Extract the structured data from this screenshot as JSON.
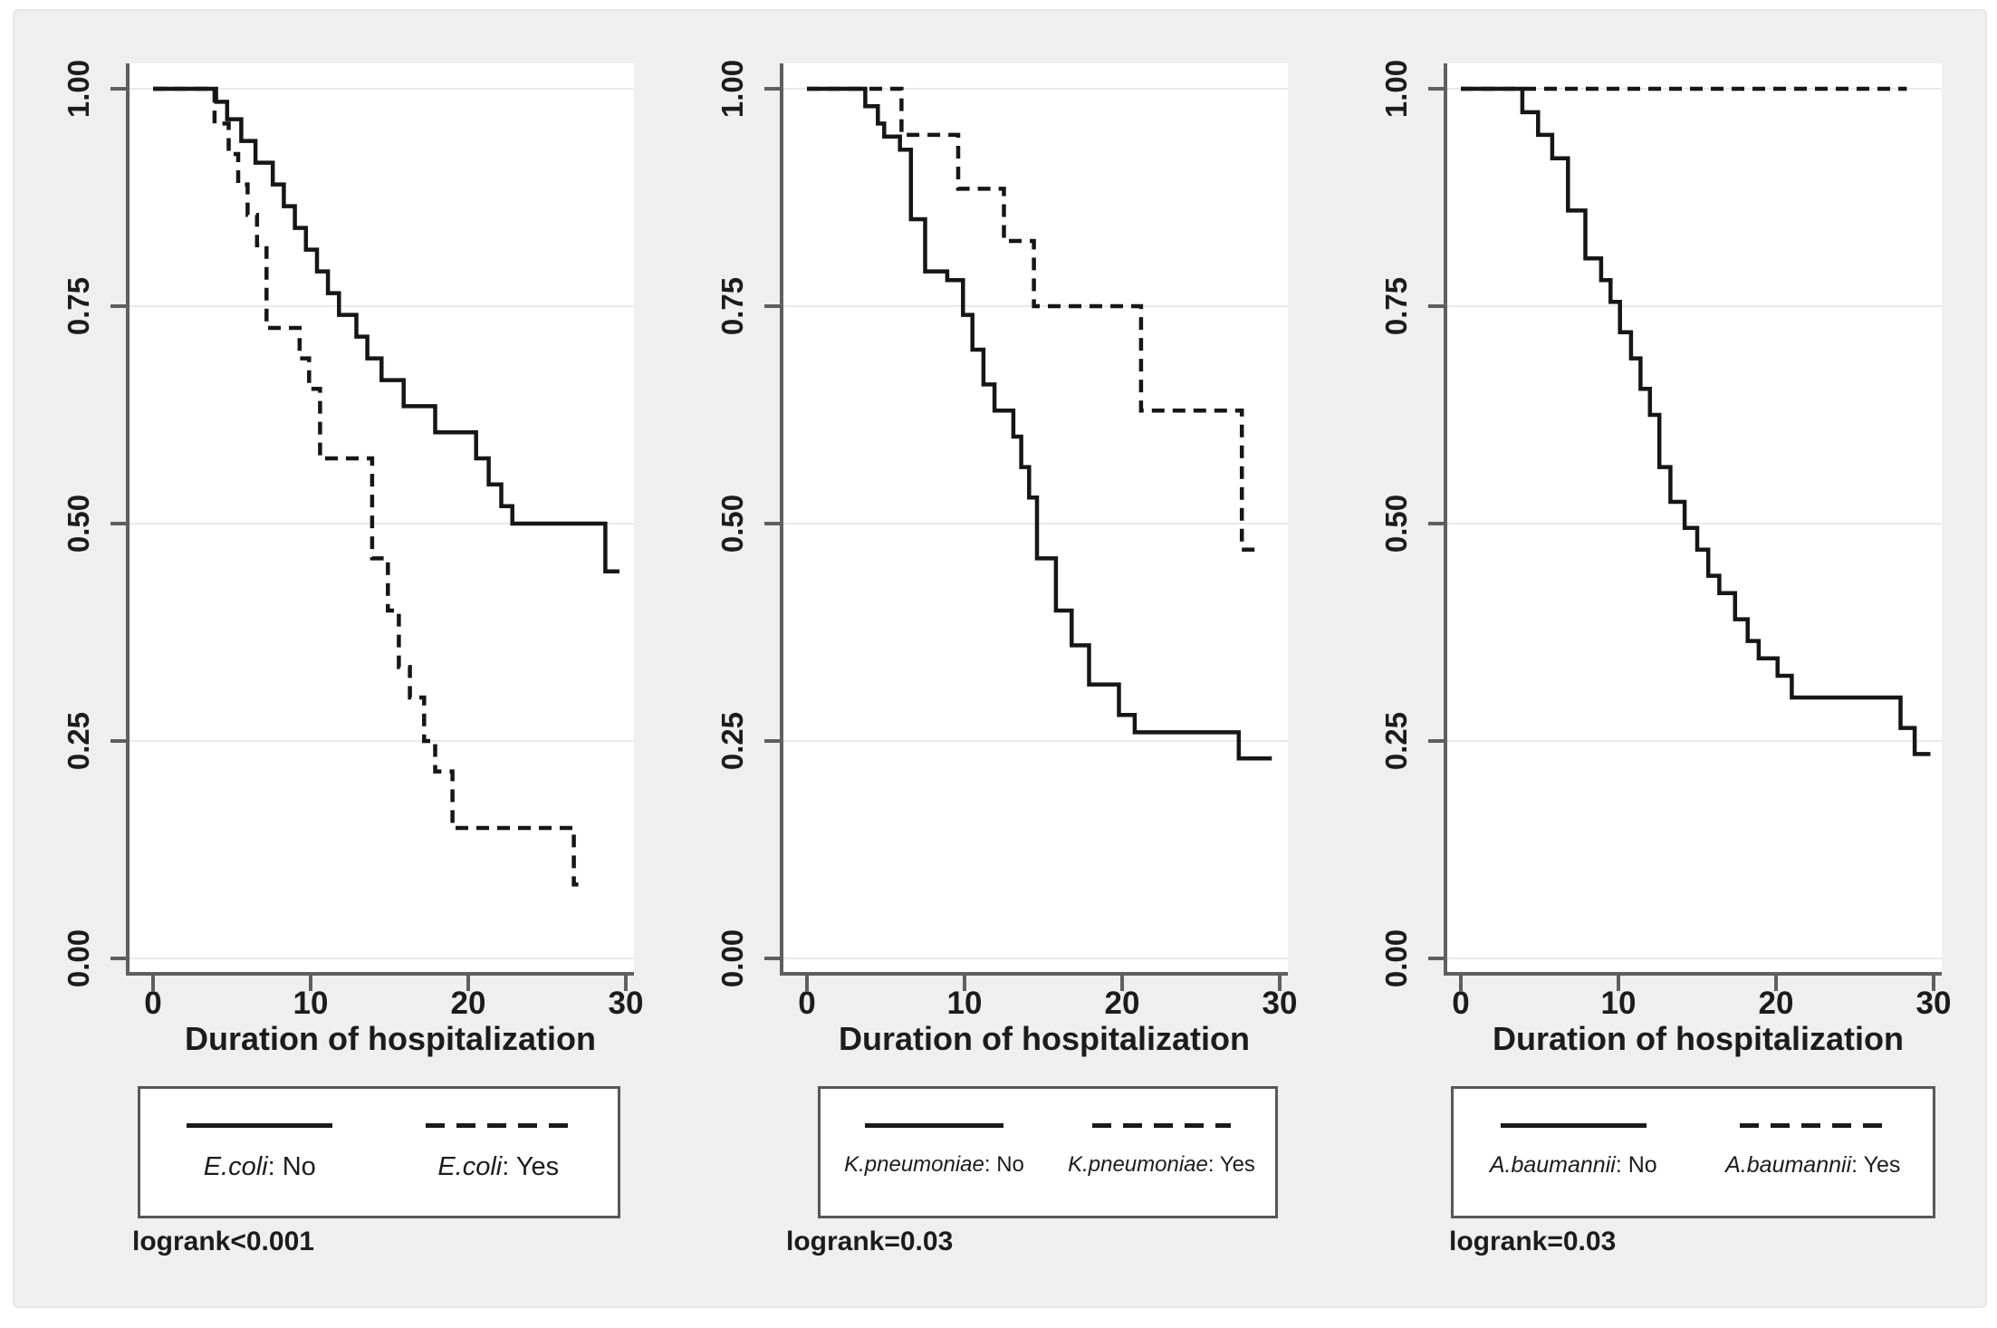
{
  "colors": {
    "figure_bg": "#f0eff0",
    "plot_bg": "#ffffff",
    "gridline": "#e9e9e9",
    "axis": "#5f5f5f",
    "curve": "#161616",
    "text": "#1c1c1c",
    "legend_border": "#575757"
  },
  "chart_data": [
    {
      "type": "line",
      "subtype": "kaplan-meier-step",
      "xlabel": "Duration of hospitalization",
      "ylabel": "",
      "xlim": [
        0,
        30
      ],
      "ylim": [
        0.0,
        1.0
      ],
      "grid": "horizontal",
      "legend_position": "below",
      "x_ticks": [
        {
          "v": 0,
          "label": "0"
        },
        {
          "v": 10,
          "label": "10"
        },
        {
          "v": 20,
          "label": "20"
        },
        {
          "v": 30,
          "label": "30"
        }
      ],
      "y_ticks": [
        {
          "v": 0.0,
          "label": "0.00"
        },
        {
          "v": 0.25,
          "label": "0.25"
        },
        {
          "v": 0.5,
          "label": "0.50"
        },
        {
          "v": 0.75,
          "label": "0.75"
        },
        {
          "v": 1.0,
          "label": "1.00"
        }
      ],
      "annotation": "logrank<0.001",
      "legend": [
        {
          "species": "E.coli",
          "suffix": ": No",
          "style": "solid"
        },
        {
          "species": "E.coli",
          "suffix": ": Yes",
          "style": "dashed"
        }
      ],
      "series": [
        {
          "name": "E.coli: No",
          "style": "solid",
          "points": [
            [
              0,
              1
            ],
            [
              4,
              1
            ],
            [
              4,
              0.985
            ],
            [
              4.7,
              0.985
            ],
            [
              4.7,
              0.965
            ],
            [
              5.6,
              0.965
            ],
            [
              5.6,
              0.94
            ],
            [
              6.5,
              0.94
            ],
            [
              6.5,
              0.915
            ],
            [
              7.6,
              0.915
            ],
            [
              7.6,
              0.89
            ],
            [
              8.3,
              0.89
            ],
            [
              8.3,
              0.865
            ],
            [
              9,
              0.865
            ],
            [
              9,
              0.84
            ],
            [
              9.7,
              0.84
            ],
            [
              9.7,
              0.815
            ],
            [
              10.4,
              0.815
            ],
            [
              10.4,
              0.79
            ],
            [
              11.1,
              0.79
            ],
            [
              11.1,
              0.765
            ],
            [
              11.8,
              0.765
            ],
            [
              11.8,
              0.74
            ],
            [
              12.9,
              0.74
            ],
            [
              12.9,
              0.715
            ],
            [
              13.6,
              0.715
            ],
            [
              13.6,
              0.69
            ],
            [
              14.5,
              0.69
            ],
            [
              14.5,
              0.665
            ],
            [
              15.9,
              0.665
            ],
            [
              15.9,
              0.635
            ],
            [
              17.9,
              0.635
            ],
            [
              17.9,
              0.605
            ],
            [
              20.5,
              0.605
            ],
            [
              20.5,
              0.575
            ],
            [
              21.3,
              0.575
            ],
            [
              21.3,
              0.545
            ],
            [
              22.1,
              0.545
            ],
            [
              22.1,
              0.52
            ],
            [
              22.8,
              0.52
            ],
            [
              22.8,
              0.5
            ],
            [
              28.7,
              0.5
            ],
            [
              28.7,
              0.445
            ],
            [
              29.6,
              0.445
            ]
          ]
        },
        {
          "name": "E.coli: Yes",
          "style": "dashed",
          "points": [
            [
              0,
              1
            ],
            [
              3.9,
              1
            ],
            [
              3.9,
              0.96
            ],
            [
              4.8,
              0.96
            ],
            [
              4.8,
              0.925
            ],
            [
              5.4,
              0.925
            ],
            [
              5.4,
              0.89
            ],
            [
              6,
              0.89
            ],
            [
              6,
              0.855
            ],
            [
              6.6,
              0.855
            ],
            [
              6.6,
              0.82
            ],
            [
              7.2,
              0.82
            ],
            [
              7.2,
              0.725
            ],
            [
              9.3,
              0.725
            ],
            [
              9.3,
              0.69
            ],
            [
              9.9,
              0.69
            ],
            [
              9.9,
              0.655
            ],
            [
              10.6,
              0.655
            ],
            [
              10.6,
              0.575
            ],
            [
              13.9,
              0.575
            ],
            [
              13.9,
              0.46
            ],
            [
              14.9,
              0.46
            ],
            [
              14.9,
              0.4
            ],
            [
              15.6,
              0.4
            ],
            [
              15.6,
              0.335
            ],
            [
              16.3,
              0.335
            ],
            [
              16.3,
              0.3
            ],
            [
              17.2,
              0.3
            ],
            [
              17.2,
              0.25
            ],
            [
              17.9,
              0.25
            ],
            [
              17.9,
              0.215
            ],
            [
              19,
              0.215
            ],
            [
              19,
              0.15
            ],
            [
              26.7,
              0.15
            ],
            [
              26.7,
              0.085
            ],
            [
              27.5,
              0.085
            ]
          ]
        }
      ]
    },
    {
      "type": "line",
      "subtype": "kaplan-meier-step",
      "xlabel": "Duration of hospitalization",
      "ylabel": "",
      "xlim": [
        0,
        30
      ],
      "ylim": [
        0.0,
        1.0
      ],
      "grid": "horizontal",
      "legend_position": "below",
      "x_ticks": [
        {
          "v": 0,
          "label": "0"
        },
        {
          "v": 10,
          "label": "10"
        },
        {
          "v": 20,
          "label": "20"
        },
        {
          "v": 30,
          "label": "30"
        }
      ],
      "y_ticks": [
        {
          "v": 0.0,
          "label": "0.00"
        },
        {
          "v": 0.25,
          "label": "0.25"
        },
        {
          "v": 0.5,
          "label": "0.50"
        },
        {
          "v": 0.75,
          "label": "0.75"
        },
        {
          "v": 1.0,
          "label": "1.00"
        }
      ],
      "annotation": "logrank=0.03",
      "legend": [
        {
          "species": "K.pneumoniae",
          "suffix": ": No",
          "style": "solid"
        },
        {
          "species": "K.pneumoniae",
          "suffix": ": Yes",
          "style": "dashed"
        }
      ],
      "series": [
        {
          "name": "K.pneumoniae: No",
          "style": "solid",
          "points": [
            [
              0,
              1
            ],
            [
              3.7,
              1
            ],
            [
              3.7,
              0.98
            ],
            [
              4.5,
              0.98
            ],
            [
              4.5,
              0.96
            ],
            [
              4.9,
              0.96
            ],
            [
              4.9,
              0.945
            ],
            [
              5.9,
              0.945
            ],
            [
              5.9,
              0.93
            ],
            [
              6.6,
              0.93
            ],
            [
              6.6,
              0.85
            ],
            [
              7.5,
              0.85
            ],
            [
              7.5,
              0.79
            ],
            [
              8.9,
              0.79
            ],
            [
              8.9,
              0.78
            ],
            [
              9.9,
              0.78
            ],
            [
              9.9,
              0.74
            ],
            [
              10.5,
              0.74
            ],
            [
              10.5,
              0.7
            ],
            [
              11.2,
              0.7
            ],
            [
              11.2,
              0.66
            ],
            [
              11.9,
              0.66
            ],
            [
              11.9,
              0.63
            ],
            [
              13.1,
              0.63
            ],
            [
              13.1,
              0.6
            ],
            [
              13.6,
              0.6
            ],
            [
              13.6,
              0.565
            ],
            [
              14.1,
              0.565
            ],
            [
              14.1,
              0.53
            ],
            [
              14.6,
              0.53
            ],
            [
              14.6,
              0.46
            ],
            [
              15.8,
              0.46
            ],
            [
              15.8,
              0.4
            ],
            [
              16.8,
              0.4
            ],
            [
              16.8,
              0.36
            ],
            [
              17.9,
              0.36
            ],
            [
              17.9,
              0.315
            ],
            [
              19.8,
              0.315
            ],
            [
              19.8,
              0.28
            ],
            [
              20.8,
              0.28
            ],
            [
              20.8,
              0.26
            ],
            [
              27.4,
              0.26
            ],
            [
              27.4,
              0.23
            ],
            [
              29.5,
              0.23
            ]
          ]
        },
        {
          "name": "K.pneumoniae: Yes",
          "style": "dashed",
          "points": [
            [
              0,
              1
            ],
            [
              6,
              1
            ],
            [
              6,
              0.947
            ],
            [
              9.6,
              0.947
            ],
            [
              9.6,
              0.885
            ],
            [
              12.5,
              0.885
            ],
            [
              12.5,
              0.825
            ],
            [
              14.4,
              0.825
            ],
            [
              14.4,
              0.75
            ],
            [
              21.2,
              0.75
            ],
            [
              21.2,
              0.63
            ],
            [
              27.6,
              0.63
            ],
            [
              27.6,
              0.47
            ],
            [
              28.5,
              0.47
            ]
          ]
        }
      ]
    },
    {
      "type": "line",
      "subtype": "kaplan-meier-step",
      "xlabel": "Duration of hospitalization",
      "ylabel": "",
      "xlim": [
        0,
        30
      ],
      "ylim": [
        0.0,
        1.0
      ],
      "grid": "horizontal",
      "legend_position": "below",
      "x_ticks": [
        {
          "v": 0,
          "label": "0"
        },
        {
          "v": 10,
          "label": "10"
        },
        {
          "v": 20,
          "label": "20"
        },
        {
          "v": 30,
          "label": "30"
        }
      ],
      "y_ticks": [
        {
          "v": 0.0,
          "label": "0.00"
        },
        {
          "v": 0.25,
          "label": "0.25"
        },
        {
          "v": 0.5,
          "label": "0.50"
        },
        {
          "v": 0.75,
          "label": "0.75"
        },
        {
          "v": 1.0,
          "label": "1.00"
        }
      ],
      "annotation": "logrank=0.03",
      "legend": [
        {
          "species": "A.baumannii",
          "suffix": ": No",
          "style": "solid"
        },
        {
          "species": "A.baumannii",
          "suffix": ": Yes",
          "style": "dashed"
        }
      ],
      "series": [
        {
          "name": "A.baumannii: No",
          "style": "solid",
          "points": [
            [
              0,
              1
            ],
            [
              3.9,
              1
            ],
            [
              3.9,
              0.973
            ],
            [
              4.9,
              0.973
            ],
            [
              4.9,
              0.947
            ],
            [
              5.8,
              0.947
            ],
            [
              5.8,
              0.92
            ],
            [
              6.8,
              0.92
            ],
            [
              6.8,
              0.86
            ],
            [
              7.9,
              0.86
            ],
            [
              7.9,
              0.805
            ],
            [
              8.9,
              0.805
            ],
            [
              8.9,
              0.78
            ],
            [
              9.5,
              0.78
            ],
            [
              9.5,
              0.755
            ],
            [
              10.1,
              0.755
            ],
            [
              10.1,
              0.72
            ],
            [
              10.8,
              0.72
            ],
            [
              10.8,
              0.69
            ],
            [
              11.4,
              0.69
            ],
            [
              11.4,
              0.655
            ],
            [
              12,
              0.655
            ],
            [
              12,
              0.625
            ],
            [
              12.6,
              0.625
            ],
            [
              12.6,
              0.565
            ],
            [
              13.3,
              0.565
            ],
            [
              13.3,
              0.525
            ],
            [
              14.2,
              0.525
            ],
            [
              14.2,
              0.495
            ],
            [
              15,
              0.495
            ],
            [
              15,
              0.47
            ],
            [
              15.7,
              0.47
            ],
            [
              15.7,
              0.44
            ],
            [
              16.4,
              0.44
            ],
            [
              16.4,
              0.42
            ],
            [
              17.4,
              0.42
            ],
            [
              17.4,
              0.39
            ],
            [
              18.2,
              0.39
            ],
            [
              18.2,
              0.365
            ],
            [
              18.9,
              0.365
            ],
            [
              18.9,
              0.345
            ],
            [
              20.1,
              0.345
            ],
            [
              20.1,
              0.325
            ],
            [
              21,
              0.325
            ],
            [
              21,
              0.3
            ],
            [
              27.9,
              0.3
            ],
            [
              27.9,
              0.265
            ],
            [
              28.8,
              0.265
            ],
            [
              28.8,
              0.235
            ],
            [
              29.8,
              0.235
            ]
          ]
        },
        {
          "name": "A.baumannii: Yes",
          "style": "dashed",
          "points": [
            [
              0,
              1
            ],
            [
              28.3,
              1
            ]
          ]
        }
      ]
    }
  ]
}
